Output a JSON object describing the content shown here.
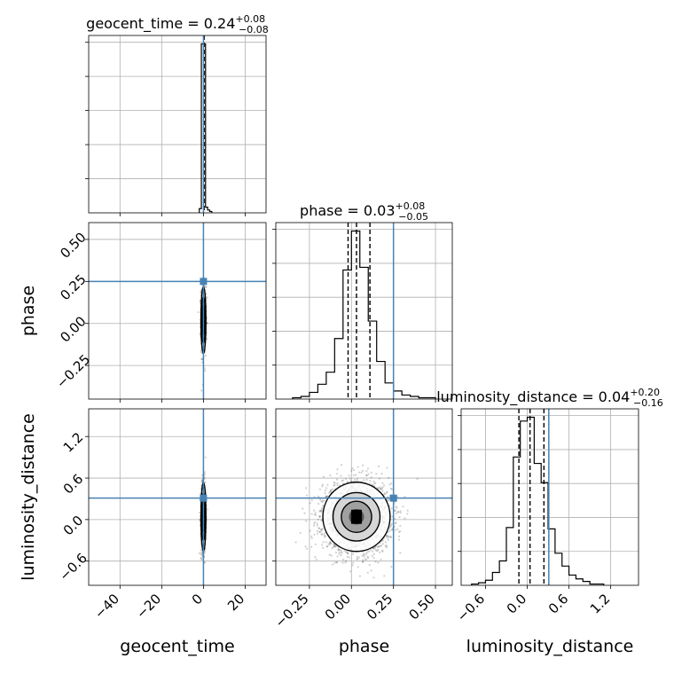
{
  "chart_data": {
    "type": "corner",
    "parameters": [
      "geocent_time",
      "phase",
      "luminosity_distance"
    ],
    "truths": {
      "geocent_time": 0.0,
      "phase": 0.25,
      "luminosity_distance": 0.31
    },
    "titles": [
      {
        "param": "geocent_time",
        "text": "geocent_time = 0.24",
        "sup": "+0.08",
        "sub": "−0.08"
      },
      {
        "param": "phase",
        "text": "phase = 0.03",
        "sup": "+0.08",
        "sub": "−0.05"
      },
      {
        "param": "luminosity_distance",
        "text": "luminosity_distance = 0.04",
        "sup": "+0.20",
        "sub": "−0.16"
      }
    ],
    "axes": {
      "geocent_time": {
        "range": [
          -55,
          30
        ],
        "ticks": [
          -40,
          -20,
          0,
          20
        ],
        "ticklabels": [
          "−40",
          "−20",
          "0",
          "20"
        ],
        "xlabel": "geocent_time"
      },
      "phase": {
        "range": [
          -0.45,
          0.6
        ],
        "ticks": [
          -0.25,
          0.0,
          0.25,
          0.5
        ],
        "ticklabels": [
          "−0.25",
          "0.00",
          "0.25",
          "0.50"
        ],
        "xlabel": "phase",
        "ylabel": "phase"
      },
      "luminosity_distance": {
        "range": [
          -0.95,
          1.6
        ],
        "ticks": [
          -0.6,
          0.0,
          0.6,
          1.2
        ],
        "ticklabels": [
          "−0.6",
          "0.0",
          "0.6",
          "1.2"
        ],
        "xlabel": "luminosity_distance",
        "ylabel": "luminosity_distance"
      }
    },
    "hist_geocent_time": {
      "edges": [
        -2,
        -1,
        0,
        1,
        2,
        3,
        4
      ],
      "counts": [
        3,
        120,
        120,
        4,
        2,
        1
      ],
      "quantiles": [
        0.24,
        0.16,
        0.32
      ]
    },
    "hist_phase": {
      "edges": [
        -0.35,
        -0.3,
        -0.25,
        -0.2,
        -0.15,
        -0.1,
        -0.05,
        0.0,
        0.05,
        0.1,
        0.15,
        0.2,
        0.25,
        0.3,
        0.35,
        0.4,
        0.45,
        0.5
      ],
      "counts": [
        1,
        2,
        5,
        11,
        20,
        45,
        96,
        125,
        98,
        58,
        28,
        12,
        6,
        3,
        2,
        1,
        1
      ],
      "quantiles": [
        0.03,
        -0.02,
        0.11
      ]
    },
    "hist_luminosity_distance": {
      "edges": [
        -0.8,
        -0.7,
        -0.6,
        -0.5,
        -0.4,
        -0.3,
        -0.2,
        -0.1,
        0.0,
        0.1,
        0.2,
        0.3,
        0.4,
        0.5,
        0.6,
        0.7,
        0.8,
        0.9,
        1.0,
        1.1
      ],
      "counts": [
        1,
        2,
        4,
        10,
        19,
        45,
        100,
        128,
        131,
        95,
        80,
        44,
        25,
        15,
        8,
        5,
        3,
        1,
        1
      ],
      "quantiles": [
        0.04,
        -0.12,
        0.24
      ]
    },
    "scatter_phase_vs_geocent_time": {
      "center": [
        0.0,
        0.02
      ],
      "spread": [
        0.6,
        0.1
      ],
      "n_points": 700
    },
    "scatter_ldist_vs_geocent_time": {
      "center": [
        0.0,
        0.04
      ],
      "spread": [
        0.6,
        0.25
      ],
      "n_points": 700
    },
    "scatter_ldist_vs_phase": {
      "center": [
        0.03,
        0.04
      ],
      "spread": [
        0.1,
        0.25
      ],
      "n_points": 2400
    }
  }
}
